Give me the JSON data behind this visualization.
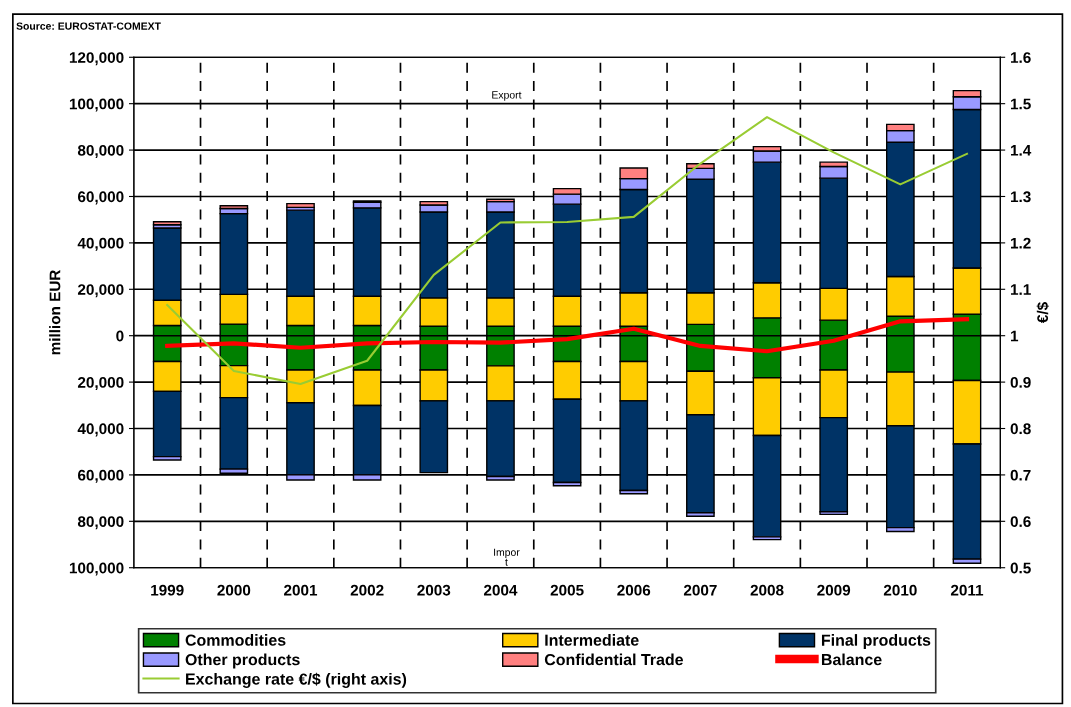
{
  "chart_data": {
    "type": "bar",
    "stacked": true,
    "categories": [
      "1999",
      "2000",
      "2001",
      "2002",
      "2003",
      "2004",
      "2005",
      "2006",
      "2007",
      "2008",
      "2009",
      "2010",
      "2011"
    ],
    "series": [
      {
        "name": "Commodities",
        "color": "#008000",
        "values": [
          4400,
          5000,
          4400,
          4400,
          4100,
          4100,
          4100,
          4100,
          4900,
          7700,
          6700,
          8400,
          9300
        ]
      },
      {
        "name": "Intermediate",
        "color": "#ffcc00",
        "values": [
          10900,
          12800,
          12600,
          12600,
          12200,
          12200,
          12900,
          14400,
          13600,
          15100,
          13700,
          17100,
          19900
        ]
      },
      {
        "name": "Final products",
        "color": "#003366",
        "values": [
          31100,
          34800,
          37100,
          38100,
          37000,
          37000,
          39700,
          44500,
          48900,
          52000,
          47500,
          57900,
          68300
        ]
      },
      {
        "name": "Other products",
        "color": "#9999ff",
        "values": [
          1400,
          2200,
          1200,
          2400,
          3000,
          4500,
          4300,
          4700,
          4700,
          4800,
          5000,
          5000,
          5500
        ]
      },
      {
        "name": "Confidential Trade",
        "color": "#ff8080",
        "values": [
          1300,
          1200,
          1600,
          600,
          1500,
          1000,
          2400,
          4600,
          2000,
          1900,
          1900,
          2700,
          2600
        ]
      },
      {
        "color": "#008000",
        "values": [
          -11100,
          -12900,
          -14800,
          -14800,
          -14800,
          -13000,
          -11100,
          -11100,
          -15300,
          -18100,
          -14800,
          -15700,
          -19300
        ]
      },
      {
        "color": "#ffcc00",
        "values": [
          -12900,
          -13800,
          -14100,
          -15300,
          -13300,
          -15100,
          -16300,
          -17000,
          -18800,
          -24900,
          -20500,
          -23100,
          -27400
        ]
      },
      {
        "color": "#003366",
        "values": [
          -28100,
          -30800,
          -31100,
          -29900,
          -30900,
          -32600,
          -35900,
          -38600,
          -42200,
          -43700,
          -40600,
          -43900,
          -49600
        ]
      },
      {
        "color": "#9999ff",
        "values": [
          -1500,
          -1800,
          -2200,
          -2200,
          null,
          -1500,
          -1400,
          -1400,
          -1500,
          -1200,
          -1100,
          -1700,
          -1800
        ]
      },
      {
        "name": "Balance",
        "type": "line",
        "color": "#ff0000",
        "values": [
          -4400,
          -3300,
          -5200,
          -3300,
          -2700,
          -3000,
          -1500,
          3000,
          -4400,
          -6700,
          -2200,
          6200,
          7100
        ]
      },
      {
        "name": "Exchange rate €/$ (right axis)",
        "type": "line",
        "axis": "y2",
        "color": "#99cc33",
        "values": [
          1.066,
          0.924,
          0.896,
          0.946,
          1.131,
          1.244,
          1.245,
          1.256,
          1.371,
          1.471,
          1.395,
          1.326,
          1.392
        ]
      }
    ],
    "ylabel": "million EUR",
    "y2label": "€/$",
    "ylim": [
      -100000,
      120000
    ],
    "yticks": [
      {
        "value": -100000,
        "label": "100,000"
      },
      {
        "value": -80000,
        "label": "80,000"
      },
      {
        "value": -60000,
        "label": "60,000"
      },
      {
        "value": -40000,
        "label": "40,000"
      },
      {
        "value": -20000,
        "label": "20,000"
      },
      0,
      {
        "value": 20000,
        "label": "20,000"
      },
      {
        "value": 40000,
        "label": "40,000"
      },
      {
        "value": 60000,
        "label": "60,000"
      },
      {
        "value": 80000,
        "label": "80,000"
      },
      {
        "value": 100000,
        "label": "100,000"
      },
      {
        "value": 120000,
        "label": "120,000"
      }
    ],
    "y2lim": [
      0.5,
      1.6
    ],
    "y2ticks": [
      0.5,
      0.6,
      0.7,
      0.8,
      0.9,
      1,
      1.1,
      1.2,
      1.3,
      1.4,
      1.5,
      1.6
    ],
    "grid": true,
    "legend": "bottom",
    "annotations": [
      "Source: EUROSTAT-COMEXT",
      "Export",
      "Impor\nt"
    ]
  }
}
